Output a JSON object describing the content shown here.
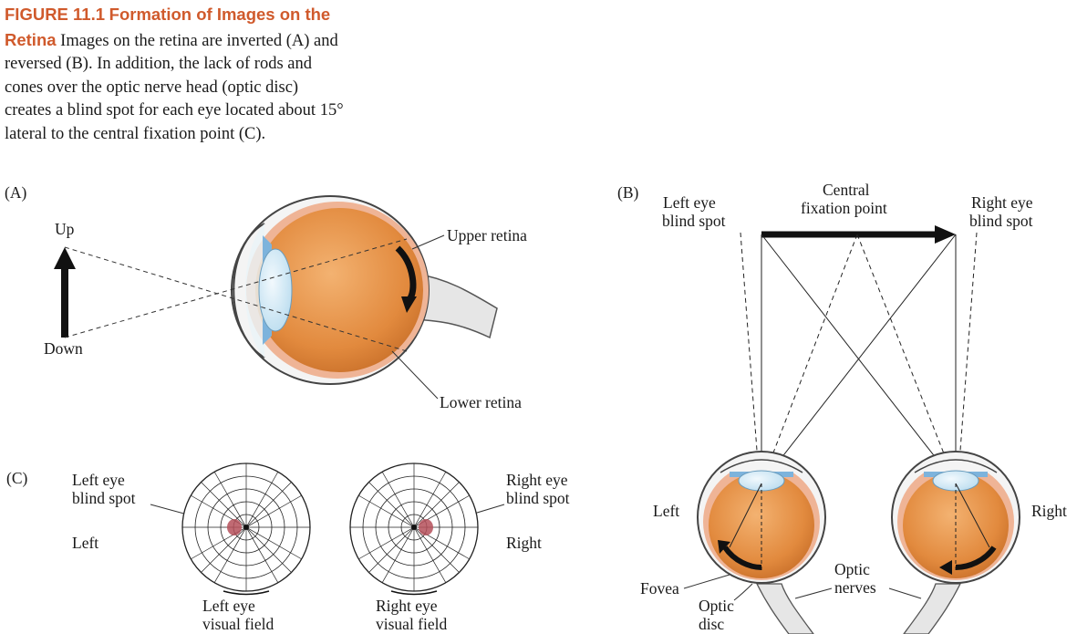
{
  "caption": {
    "figure_label": "FIGURE 11.1",
    "figure_title": "Formation of Images on the Retina",
    "text": "Images on the retina are inverted (A) and reversed (B). In addition, the lack of rods and cones over the optic nerve head (optic disc) creates a blind spot for each eye located about 15° lateral to the central fixation point (C)."
  },
  "panel_a": {
    "tag": "(A)",
    "up": "Up",
    "down": "Down",
    "upper_retina": "Upper retina",
    "lower_retina": "Lower retina"
  },
  "panel_b": {
    "tag": "(B)",
    "left_blind_1": "Left eye",
    "left_blind_2": "blind spot",
    "fixation_1": "Central",
    "fixation_2": "fixation point",
    "right_blind_1": "Right eye",
    "right_blind_2": "blind spot",
    "left": "Left",
    "right": "Right",
    "fovea": "Fovea",
    "optic_disc_1": "Optic",
    "optic_disc_2": "disc",
    "optic_nerves_1": "Optic",
    "optic_nerves_2": "nerves"
  },
  "panel_c": {
    "tag": "(C)",
    "left_blind_1": "Left eye",
    "left_blind_2": "blind spot",
    "left": "Left",
    "right_blind_1": "Right eye",
    "right_blind_2": "blind spot",
    "right": "Right",
    "left_field_1": "Left eye",
    "left_field_2": "visual field",
    "right_field_1": "Right eye",
    "right_field_2": "visual field"
  },
  "colors": {
    "caption_title": "#d05a2c",
    "retina_orange": "#e8954a",
    "retina_pink": "#efb496",
    "lens_blue": "#cfe6f3",
    "iris_blue": "#7db3dc",
    "nerve_gray": "#e6e6e6",
    "blind_spot": "#b5505a",
    "arrow": "#111111"
  }
}
